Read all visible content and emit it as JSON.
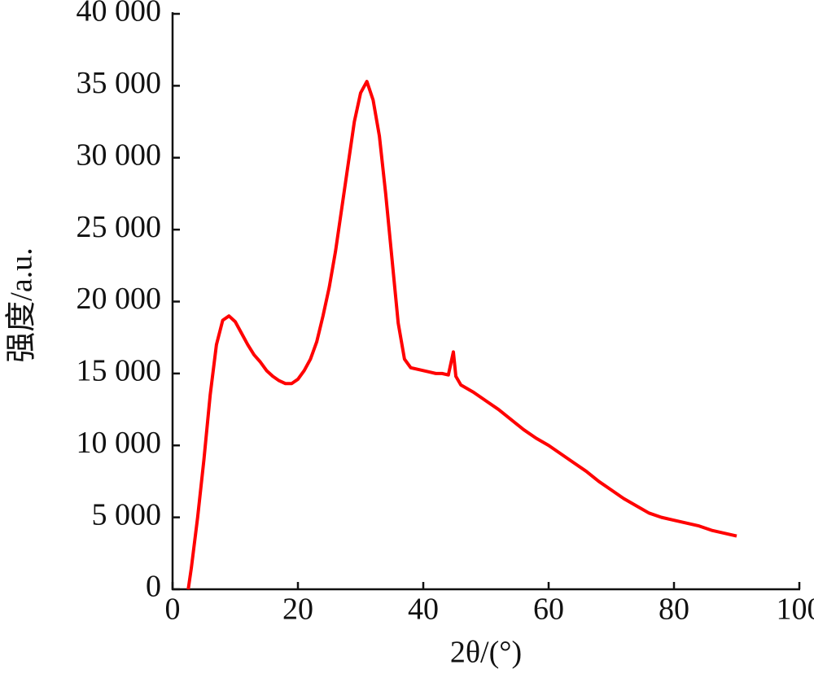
{
  "chart_data": {
    "type": "line",
    "x_label": "2θ/(°)",
    "y_label": "强度/a.u.",
    "color": "#ff0000",
    "x": [
      2.5,
      3,
      4,
      5,
      6,
      7,
      8,
      9,
      10,
      11,
      12,
      13,
      14,
      15,
      16,
      17,
      18,
      19,
      20,
      21,
      22,
      23,
      24,
      25,
      26,
      27,
      28,
      29,
      30,
      31,
      32,
      33,
      34,
      35,
      36,
      37,
      38,
      39,
      40,
      41,
      42,
      43,
      44,
      44.8,
      45.2,
      46,
      48,
      50,
      52,
      54,
      56,
      58,
      60,
      62,
      64,
      66,
      68,
      70,
      72,
      74,
      76,
      78,
      80,
      82,
      84,
      86,
      88,
      90
    ],
    "values": [
      0,
      1500,
      5000,
      9000,
      13500,
      17000,
      18700,
      19000,
      18600,
      17800,
      17000,
      16300,
      15800,
      15200,
      14800,
      14500,
      14300,
      14300,
      14600,
      15200,
      16000,
      17200,
      19000,
      21000,
      23500,
      26500,
      29500,
      32500,
      34500,
      35300,
      34000,
      31500,
      27500,
      23000,
      18500,
      16000,
      15400,
      15300,
      15200,
      15100,
      15000,
      15000,
      14900,
      16500,
      14800,
      14200,
      13700,
      13100,
      12500,
      11800,
      11100,
      10500,
      10000,
      9400,
      8800,
      8200,
      7500,
      6900,
      6300,
      5800,
      5300,
      5000,
      4800,
      4600,
      4400,
      4100,
      3900,
      3700
    ],
    "xlim": [
      0,
      100
    ],
    "xticks": [
      0,
      20,
      40,
      60,
      80,
      100
    ],
    "ylim": [
      0,
      40000
    ],
    "yticks": [
      0,
      {
        "value": 5000,
        "label": "5 000"
      },
      {
        "value": 10000,
        "label": "10 000"
      },
      {
        "value": 15000,
        "label": "15 000"
      },
      {
        "value": 20000,
        "label": "20 000"
      },
      {
        "value": 25000,
        "label": "25 000"
      },
      {
        "value": 30000,
        "label": "30 000"
      },
      {
        "value": 35000,
        "label": "35 000"
      },
      {
        "value": 40000,
        "label": "40 000"
      }
    ]
  }
}
